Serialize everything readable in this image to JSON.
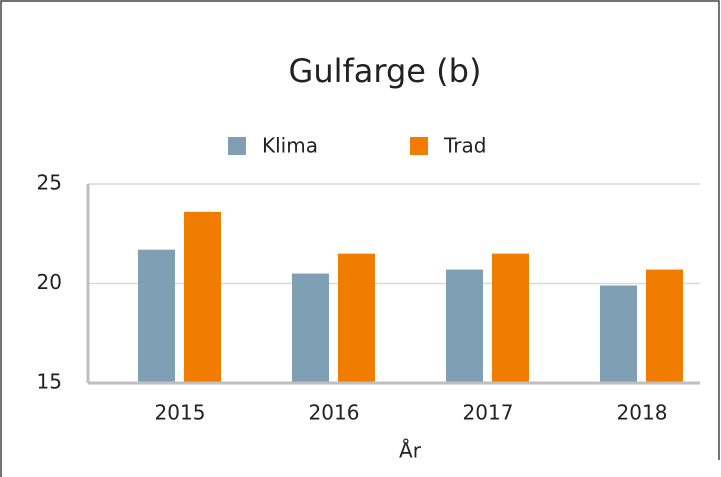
{
  "chart_data": {
    "type": "bar",
    "title": "Gulfarge (b)",
    "x_label": "År",
    "categories": [
      "2015",
      "2016",
      "2017",
      "2018"
    ],
    "series": [
      {
        "name": "Klima",
        "color": "#7f9fb5",
        "values": [
          21.7,
          20.5,
          20.7,
          19.9
        ]
      },
      {
        "name": "Trad",
        "color": "#f07d00",
        "values": [
          23.6,
          21.5,
          21.5,
          20.7
        ]
      }
    ],
    "ylim": [
      15,
      25
    ],
    "yticks": [
      15,
      20,
      25
    ],
    "grid": true,
    "legend": "top"
  }
}
